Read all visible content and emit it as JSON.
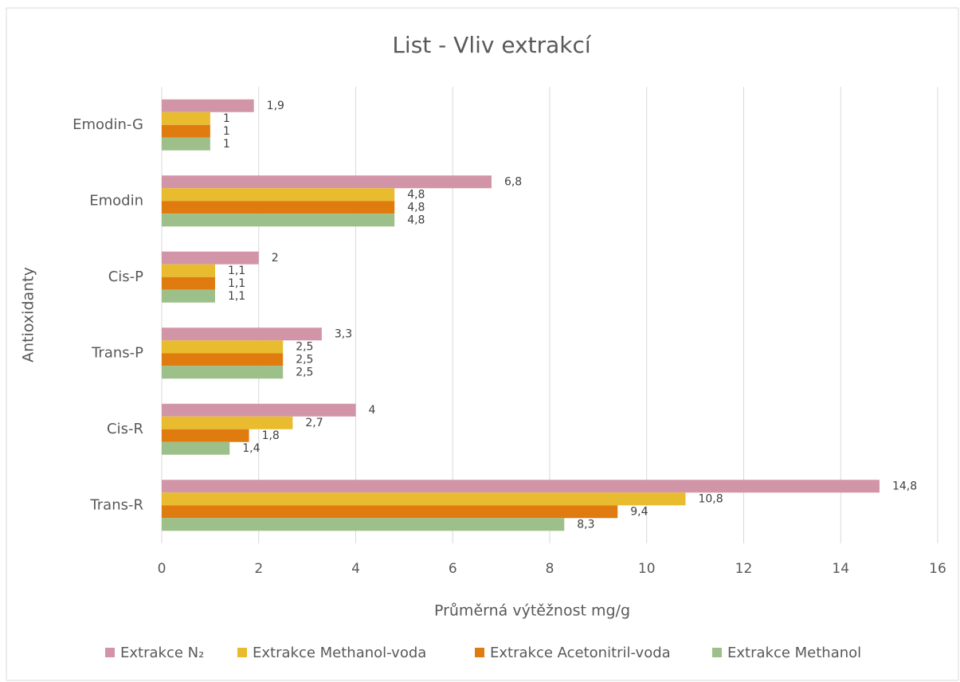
{
  "chart_data": {
    "type": "barh",
    "title": "List - Vliv extrakcí",
    "xlabel": "Průměrná výtěžnost mg/g",
    "ylabel": "Antioxidanty",
    "categories": [
      "Trans-R",
      "Cis-R",
      "Trans-P",
      "Cis-P",
      "Emodin",
      "Emodin-G"
    ],
    "series": [
      {
        "name": "Extrakce N₂",
        "color": "#d295a8",
        "values": [
          14.8,
          4,
          3.3,
          2,
          6.8,
          1.9
        ],
        "value_labels": [
          "14,8",
          "4",
          "3,3",
          "2",
          "6,8",
          "1,9"
        ]
      },
      {
        "name": "Extrakce Methanol-voda",
        "color": "#e8bc2e",
        "values": [
          10.8,
          2.7,
          2.5,
          1.1,
          4.8,
          1
        ],
        "value_labels": [
          "10,8",
          "2,7",
          "2,5",
          "1,1",
          "4,8",
          "1"
        ]
      },
      {
        "name": "Extrakce Acetonitril-voda",
        "color": "#e07b10",
        "values": [
          9.4,
          1.8,
          2.5,
          1.1,
          4.8,
          1
        ],
        "value_labels": [
          "9,4",
          "1,8",
          "2,5",
          "1,1",
          "4,8",
          "1"
        ]
      },
      {
        "name": "Extrakce Methanol",
        "color": "#9dc08b",
        "values": [
          8.3,
          1.4,
          2.5,
          1.1,
          4.8,
          1
        ],
        "value_labels": [
          "8,3",
          "1,4",
          "2,5",
          "1,1",
          "4,8",
          "1"
        ]
      }
    ],
    "xlim": [
      0,
      16
    ],
    "xticks": [
      0,
      2,
      4,
      6,
      8,
      10,
      12,
      14,
      16
    ],
    "grid": true,
    "legend": "bottom"
  }
}
